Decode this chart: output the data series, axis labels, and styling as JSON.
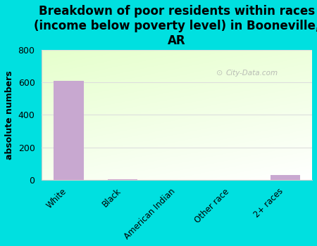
{
  "title": "Breakdown of poor residents within races\n(income below poverty level) in Booneville,\nAR",
  "categories": [
    "White",
    "Black",
    "American Indian",
    "Other race",
    "2+ races"
  ],
  "values": [
    610,
    5,
    0,
    0,
    30
  ],
  "bar_color": "#c8a8d0",
  "background_color": "#00e0e0",
  "ylabel": "absolute numbers",
  "ylim": [
    0,
    800
  ],
  "yticks": [
    0,
    200,
    400,
    600,
    800
  ],
  "watermark": "City-Data.com",
  "title_fontsize": 12,
  "ylabel_fontsize": 9,
  "grid_color": "#dddddd"
}
